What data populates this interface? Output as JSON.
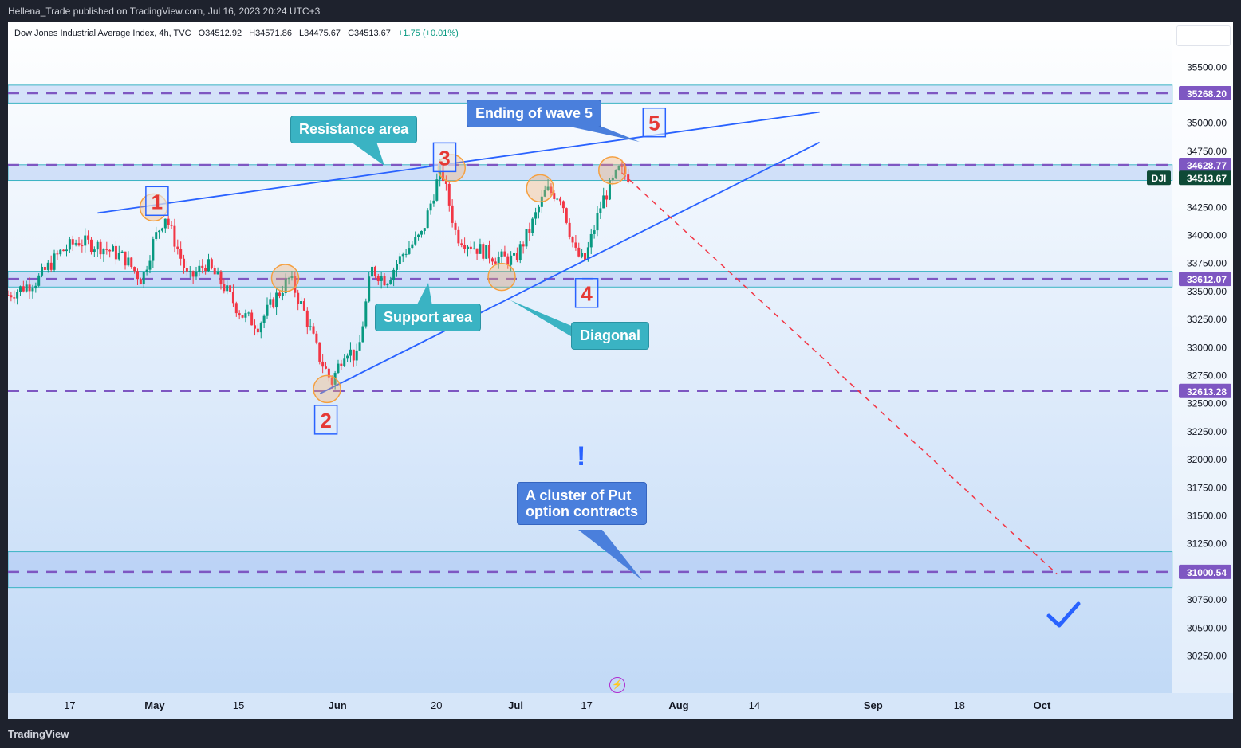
{
  "header": {
    "publish_text": "Hellena_Trade published on TradingView.com, Jul 16, 2023 20:24 UTC+3"
  },
  "symbol": {
    "name": "Dow Jones Industrial Average Index, 4h, TVC",
    "open": "O34512.92",
    "high": "H34571.86",
    "low": "L34475.67",
    "close": "C34513.67",
    "change": "+1.75 (+0.01%)"
  },
  "footer": {
    "logo": "TradingView"
  },
  "annotations": {
    "resistance": "Resistance area",
    "support": "Support area",
    "ending5": "Ending of wave 5",
    "diagonal": "Diagonal",
    "put_line1": "A cluster of Put",
    "put_line2": "option contracts",
    "exclamation": "!"
  },
  "colors": {
    "up": "#089981",
    "down": "#f23645",
    "level_line": "#7e57c2",
    "trend_line": "#2962ff",
    "forecast_line": "#f23645",
    "wave_label": "#e53935",
    "zone_fill": "#a9c4f3"
  },
  "chart_data": {
    "type": "candlestick",
    "symbol": "DJI",
    "timeframe": "4h",
    "y_ticks": [
      30250,
      30500,
      30750,
      31000,
      31250,
      31500,
      31750,
      32000,
      32250,
      32500,
      32750,
      33000,
      33250,
      33500,
      33750,
      34000,
      34250,
      34500,
      34750,
      35000,
      35250,
      35500
    ],
    "ylim": [
      29920,
      35900
    ],
    "x_ticks": [
      {
        "label": "17",
        "pos": 0.053
      },
      {
        "label": "May",
        "pos": 0.126
      },
      {
        "label": "15",
        "pos": 0.198
      },
      {
        "label": "Jun",
        "pos": 0.283
      },
      {
        "label": "20",
        "pos": 0.368
      },
      {
        "label": "Jul",
        "pos": 0.436
      },
      {
        "label": "17",
        "pos": 0.497
      },
      {
        "label": "Aug",
        "pos": 0.576
      },
      {
        "label": "14",
        "pos": 0.641
      },
      {
        "label": "Sep",
        "pos": 0.743
      },
      {
        "label": "18",
        "pos": 0.817
      },
      {
        "label": "Oct",
        "pos": 0.888
      }
    ],
    "price_labels": [
      {
        "value": 35268.2,
        "text": "35268.20"
      },
      {
        "value": 34628.77,
        "text": "34628.77"
      },
      {
        "value": 33612.07,
        "text": "33612.07"
      },
      {
        "value": 32613.28,
        "text": "32613.28"
      },
      {
        "value": 31000.54,
        "text": "31000.54"
      }
    ],
    "current": {
      "label": "DJI",
      "value": 34513.67,
      "text": "34513.67"
    },
    "zones": [
      {
        "from": 35180,
        "to": 35340
      },
      {
        "from": 34490,
        "to": 34630
      },
      {
        "from": 33540,
        "to": 33680
      },
      {
        "from": 30860,
        "to": 31180
      }
    ],
    "candle_anchors": [
      {
        "t": 0.0,
        "p": 33470
      },
      {
        "t": 0.025,
        "p": 33600
      },
      {
        "t": 0.045,
        "p": 33850
      },
      {
        "t": 0.06,
        "p": 33950
      },
      {
        "t": 0.08,
        "p": 33900
      },
      {
        "t": 0.1,
        "p": 33800
      },
      {
        "t": 0.115,
        "p": 33600
      },
      {
        "t": 0.125,
        "p": 33950
      },
      {
        "t": 0.135,
        "p": 34180
      },
      {
        "t": 0.145,
        "p": 33900
      },
      {
        "t": 0.155,
        "p": 33600
      },
      {
        "t": 0.17,
        "p": 33750
      },
      {
        "t": 0.185,
        "p": 33550
      },
      {
        "t": 0.2,
        "p": 33300
      },
      {
        "t": 0.215,
        "p": 33200
      },
      {
        "t": 0.23,
        "p": 33450
      },
      {
        "t": 0.242,
        "p": 33620
      },
      {
        "t": 0.255,
        "p": 33300
      },
      {
        "t": 0.268,
        "p": 32900
      },
      {
        "t": 0.278,
        "p": 32690
      },
      {
        "t": 0.29,
        "p": 33000
      },
      {
        "t": 0.3,
        "p": 32900
      },
      {
        "t": 0.312,
        "p": 33700
      },
      {
        "t": 0.325,
        "p": 33600
      },
      {
        "t": 0.34,
        "p": 33850
      },
      {
        "t": 0.355,
        "p": 34000
      },
      {
        "t": 0.372,
        "p": 34600
      },
      {
        "t": 0.385,
        "p": 34000
      },
      {
        "t": 0.4,
        "p": 33900
      },
      {
        "t": 0.42,
        "p": 33800
      },
      {
        "t": 0.435,
        "p": 33780
      },
      {
        "t": 0.448,
        "p": 34050
      },
      {
        "t": 0.462,
        "p": 34400
      },
      {
        "t": 0.475,
        "p": 34350
      },
      {
        "t": 0.487,
        "p": 33850
      },
      {
        "t": 0.495,
        "p": 33760
      },
      {
        "t": 0.51,
        "p": 34300
      },
      {
        "t": 0.525,
        "p": 34580
      },
      {
        "t": 0.535,
        "p": 34513
      }
    ],
    "trend_lines": [
      {
        "t1": 0.077,
        "p1": 34200,
        "t2": 0.697,
        "p2": 35100
      },
      {
        "t1": 0.268,
        "p1": 32590,
        "t2": 0.697,
        "p2": 34830
      }
    ],
    "forecast": {
      "t1": 0.527,
      "p1": 34560,
      "t2": 0.901,
      "p2": 30980
    },
    "circles": [
      {
        "t": 0.125,
        "p": 34250
      },
      {
        "t": 0.238,
        "p": 33620
      },
      {
        "t": 0.274,
        "p": 32630
      },
      {
        "t": 0.381,
        "p": 34600
      },
      {
        "t": 0.424,
        "p": 33630
      },
      {
        "t": 0.457,
        "p": 34420
      },
      {
        "t": 0.519,
        "p": 34580
      }
    ],
    "wave_labels": [
      {
        "text": "1",
        "t": 0.128,
        "p": 34300
      },
      {
        "text": "2",
        "t": 0.273,
        "p": 32350
      },
      {
        "text": "3",
        "t": 0.375,
        "p": 34690
      },
      {
        "text": "4",
        "t": 0.497,
        "p": 33480
      },
      {
        "text": "5",
        "t": 0.555,
        "p": 35000
      }
    ]
  }
}
